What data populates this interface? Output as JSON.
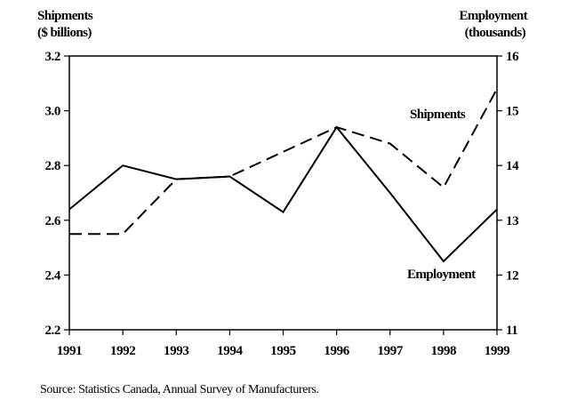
{
  "chart_data": {
    "type": "line",
    "left_axis_title": [
      "Shipments",
      "($ billions)"
    ],
    "right_axis_title": [
      "Employment",
      "(thousands)"
    ],
    "x": [
      "1991",
      "1992",
      "1993",
      "1994",
      "1995",
      "1996",
      "1997",
      "1998",
      "1999"
    ],
    "left_ylim": [
      2.2,
      3.2
    ],
    "left_yticks": [
      "2.2",
      "2.4",
      "2.6",
      "2.8",
      "3.0",
      "3.2"
    ],
    "right_ylim": [
      11,
      16
    ],
    "right_yticks": [
      "11",
      "12",
      "13",
      "14",
      "15",
      "16"
    ],
    "grid": false,
    "series": [
      {
        "name": "Shipments",
        "axis": "left",
        "style": "dashed",
        "color": "#000000",
        "values": [
          2.55,
          2.55,
          2.75,
          2.76,
          2.85,
          2.94,
          2.88,
          2.72,
          3.08
        ]
      },
      {
        "name": "Employment",
        "axis": "right",
        "style": "solid",
        "color": "#000000",
        "values": [
          13.2,
          14.0,
          13.75,
          13.8,
          13.15,
          14.7,
          13.5,
          12.25,
          13.2
        ]
      }
    ]
  },
  "source": "Source: Statistics Canada, Annual Survey of Manufacturers."
}
